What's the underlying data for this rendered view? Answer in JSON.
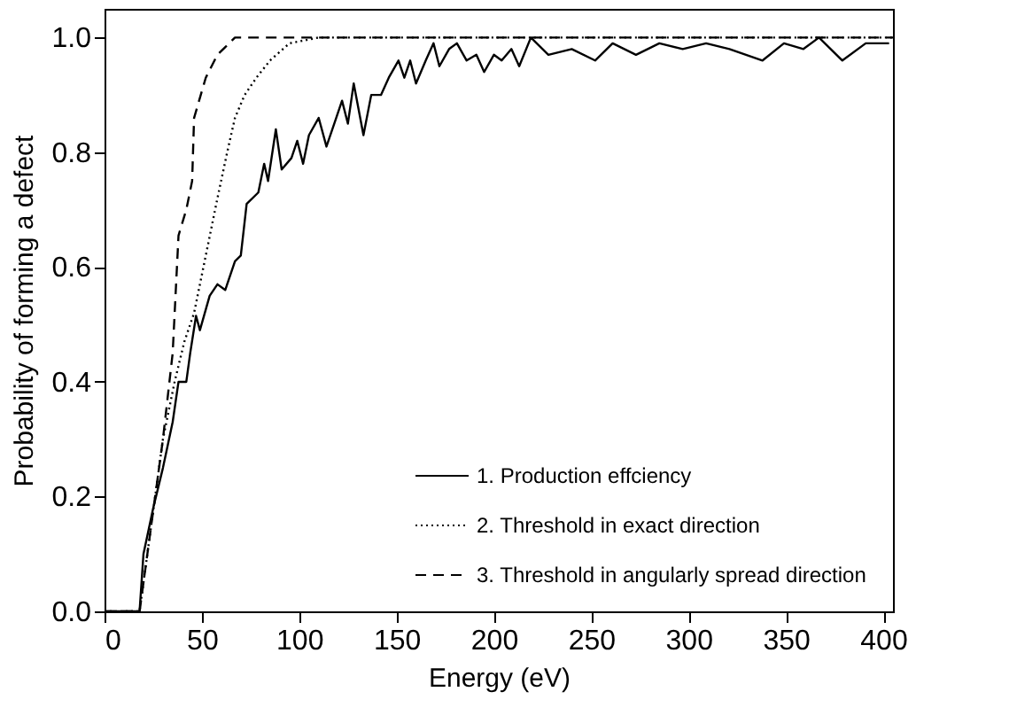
{
  "chart_data": {
    "type": "line",
    "xlabel": "Energy (eV)",
    "ylabel": "Probability of forming a defect",
    "xlim": [
      0,
      405
    ],
    "ylim": [
      0,
      1.05
    ],
    "xticks": [
      0,
      50,
      100,
      150,
      200,
      250,
      300,
      350,
      400
    ],
    "yticks": [
      {
        "value": 0,
        "label": "0.0"
      },
      0.2,
      0.4,
      0.6,
      0.8,
      {
        "value": 1,
        "label": "1.0"
      }
    ],
    "grid": false,
    "legend": "bottom right",
    "marker": "none",
    "series": [
      {
        "name": "1. Production effciency",
        "color": "#000000",
        "line_style": "solid",
        "x": [
          0,
          18,
          20,
          25,
          30,
          35,
          38,
          42,
          44,
          47,
          49,
          54,
          58,
          62,
          67,
          70,
          73,
          79,
          82,
          84,
          88,
          91,
          96,
          99,
          102,
          105,
          110,
          114,
          119,
          122,
          125,
          128,
          133,
          137,
          142,
          146,
          151,
          154,
          157,
          160,
          165,
          169,
          172,
          177,
          181,
          186,
          191,
          195,
          200,
          204,
          209,
          213,
          219,
          228,
          240,
          252,
          261,
          273,
          285,
          297,
          309,
          321,
          338,
          349,
          359,
          367,
          379,
          391,
          403
        ],
        "values": [
          0,
          0,
          0.1,
          0.18,
          0.25,
          0.33,
          0.4,
          0.4,
          0.45,
          0.515,
          0.49,
          0.55,
          0.57,
          0.56,
          0.61,
          0.62,
          0.71,
          0.73,
          0.78,
          0.75,
          0.84,
          0.77,
          0.79,
          0.82,
          0.78,
          0.83,
          0.86,
          0.81,
          0.86,
          0.89,
          0.85,
          0.92,
          0.83,
          0.9,
          0.9,
          0.93,
          0.96,
          0.93,
          0.96,
          0.92,
          0.96,
          0.99,
          0.95,
          0.98,
          0.99,
          0.96,
          0.97,
          0.94,
          0.97,
          0.96,
          0.98,
          0.95,
          1.0,
          0.97,
          0.98,
          0.96,
          0.99,
          0.97,
          0.99,
          0.98,
          0.99,
          0.98,
          0.96,
          0.99,
          0.98,
          1.0,
          0.96,
          0.99,
          0.99
        ]
      },
      {
        "name": "2. Threshold in exact direction",
        "color": "#000000",
        "line_style": "dotted",
        "x": [
          0,
          18,
          24,
          30,
          36,
          41,
          46,
          52,
          58,
          63,
          67,
          72,
          78,
          85,
          95,
          110,
          405
        ],
        "values": [
          0,
          0,
          0.15,
          0.3,
          0.4,
          0.47,
          0.52,
          0.62,
          0.72,
          0.8,
          0.86,
          0.9,
          0.93,
          0.96,
          0.99,
          1.0,
          1.0
        ]
      },
      {
        "name": "3. Threshold in angularly spread direction",
        "color": "#000000",
        "line_style": "dashed",
        "x": [
          0,
          18,
          24,
          30,
          35,
          38,
          42,
          45,
          46,
          52,
          58,
          67,
          405
        ],
        "values": [
          0,
          0,
          0.15,
          0.3,
          0.45,
          0.655,
          0.7,
          0.75,
          0.86,
          0.93,
          0.97,
          1.0,
          1.0
        ]
      }
    ]
  }
}
